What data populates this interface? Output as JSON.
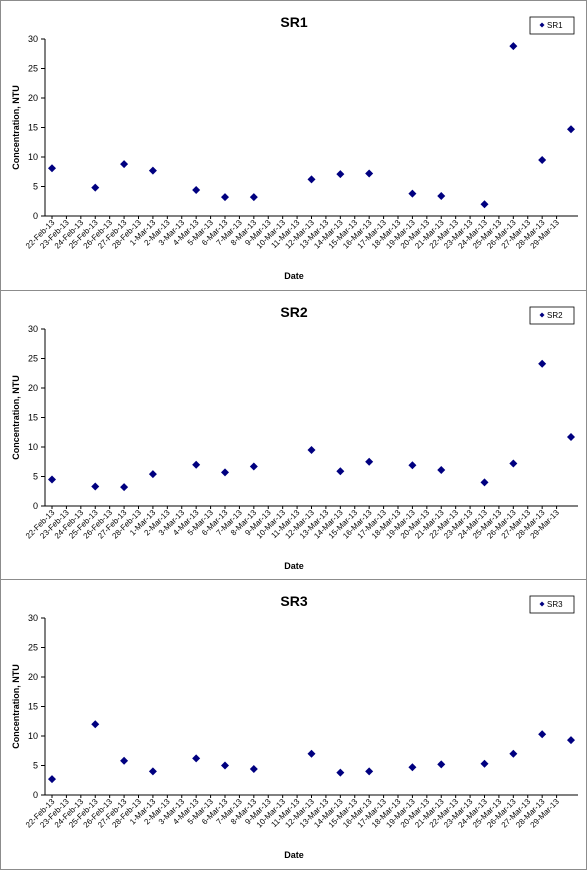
{
  "chart_data": [
    {
      "type": "scatter",
      "title": "SR1",
      "xlabel": "Date",
      "ylabel": "Concentration, NTU",
      "ylim": [
        0,
        30
      ],
      "yticks": [
        0,
        5,
        10,
        15,
        20,
        25,
        30
      ],
      "grid": false,
      "legend_position": "top-right",
      "marker_color": "#000080",
      "categories": [
        "22-Feb-13",
        "23-Feb-13",
        "24-Feb-13",
        "25-Feb-13",
        "26-Feb-13",
        "27-Feb-13",
        "28-Feb-13",
        "1-Mar-13",
        "2-Mar-13",
        "3-Mar-13",
        "4-Mar-13",
        "5-Mar-13",
        "6-Mar-13",
        "7-Mar-13",
        "8-Mar-13",
        "9-Mar-13",
        "10-Mar-13",
        "11-Mar-13",
        "12-Mar-13",
        "13-Mar-13",
        "14-Mar-13",
        "15-Mar-13",
        "16-Mar-13",
        "17-Mar-13",
        "18-Mar-13",
        "19-Mar-13",
        "20-Mar-13",
        "21-Mar-13",
        "22-Mar-13",
        "23-Mar-13",
        "24-Mar-13",
        "25-Mar-13",
        "26-Mar-13",
        "27-Mar-13",
        "28-Mar-13",
        "29-Mar-13"
      ],
      "series": [
        {
          "name": "SR1",
          "points": [
            {
              "x": "22-Feb-13",
              "y": 8.1
            },
            {
              "x": "25-Feb-13",
              "y": 4.8
            },
            {
              "x": "27-Feb-13",
              "y": 8.8
            },
            {
              "x": "1-Mar-13",
              "y": 7.7
            },
            {
              "x": "4-Mar-13",
              "y": 4.4
            },
            {
              "x": "6-Mar-13",
              "y": 3.2
            },
            {
              "x": "8-Mar-13",
              "y": 3.2
            },
            {
              "x": "12-Mar-13",
              "y": 6.2
            },
            {
              "x": "14-Mar-13",
              "y": 7.1
            },
            {
              "x": "16-Mar-13",
              "y": 7.2
            },
            {
              "x": "19-Mar-13",
              "y": 3.8
            },
            {
              "x": "21-Mar-13",
              "y": 3.4
            },
            {
              "x": "24-Mar-13",
              "y": 2.0
            },
            {
              "x": "26-Mar-13",
              "y": 28.8
            },
            {
              "x": "28-Mar-13",
              "y": 9.5
            },
            {
              "x": "30-Mar-13",
              "y": 14.7
            }
          ]
        }
      ]
    },
    {
      "type": "scatter",
      "title": "SR2",
      "xlabel": "Date",
      "ylabel": "Concentration, NTU",
      "ylim": [
        0,
        30
      ],
      "yticks": [
        0,
        5,
        10,
        15,
        20,
        25,
        30
      ],
      "grid": false,
      "legend_position": "top-right",
      "marker_color": "#000080",
      "categories": [
        "22-Feb-13",
        "23-Feb-13",
        "24-Feb-13",
        "25-Feb-13",
        "26-Feb-13",
        "27-Feb-13",
        "28-Feb-13",
        "1-Mar-13",
        "2-Mar-13",
        "3-Mar-13",
        "4-Mar-13",
        "5-Mar-13",
        "6-Mar-13",
        "7-Mar-13",
        "8-Mar-13",
        "9-Mar-13",
        "10-Mar-13",
        "11-Mar-13",
        "12-Mar-13",
        "13-Mar-13",
        "14-Mar-13",
        "15-Mar-13",
        "16-Mar-13",
        "17-Mar-13",
        "18-Mar-13",
        "19-Mar-13",
        "20-Mar-13",
        "21-Mar-13",
        "22-Mar-13",
        "23-Mar-13",
        "24-Mar-13",
        "25-Mar-13",
        "26-Mar-13",
        "27-Mar-13",
        "28-Mar-13",
        "29-Mar-13"
      ],
      "series": [
        {
          "name": "SR2",
          "points": [
            {
              "x": "22-Feb-13",
              "y": 4.5
            },
            {
              "x": "25-Feb-13",
              "y": 3.3
            },
            {
              "x": "27-Feb-13",
              "y": 3.2
            },
            {
              "x": "1-Mar-13",
              "y": 5.4
            },
            {
              "x": "4-Mar-13",
              "y": 7.0
            },
            {
              "x": "6-Mar-13",
              "y": 5.7
            },
            {
              "x": "8-Mar-13",
              "y": 6.7
            },
            {
              "x": "12-Mar-13",
              "y": 9.5
            },
            {
              "x": "14-Mar-13",
              "y": 5.9
            },
            {
              "x": "16-Mar-13",
              "y": 7.5
            },
            {
              "x": "19-Mar-13",
              "y": 6.9
            },
            {
              "x": "21-Mar-13",
              "y": 6.1
            },
            {
              "x": "24-Mar-13",
              "y": 4.0
            },
            {
              "x": "26-Mar-13",
              "y": 7.2
            },
            {
              "x": "28-Mar-13",
              "y": 24.1
            },
            {
              "x": "30-Mar-13",
              "y": 11.7
            }
          ]
        }
      ]
    },
    {
      "type": "scatter",
      "title": "SR3",
      "xlabel": "Date",
      "ylabel": "Concentration, NTU",
      "ylim": [
        0,
        30
      ],
      "yticks": [
        0,
        5,
        10,
        15,
        20,
        25,
        30
      ],
      "grid": false,
      "legend_position": "top-right",
      "marker_color": "#000080",
      "categories": [
        "22-Feb-13",
        "23-Feb-13",
        "24-Feb-13",
        "25-Feb-13",
        "26-Feb-13",
        "27-Feb-13",
        "28-Feb-13",
        "1-Mar-13",
        "2-Mar-13",
        "3-Mar-13",
        "4-Mar-13",
        "5-Mar-13",
        "6-Mar-13",
        "7-Mar-13",
        "8-Mar-13",
        "9-Mar-13",
        "10-Mar-13",
        "11-Mar-13",
        "12-Mar-13",
        "13-Mar-13",
        "14-Mar-13",
        "15-Mar-13",
        "16-Mar-13",
        "17-Mar-13",
        "18-Mar-13",
        "19-Mar-13",
        "20-Mar-13",
        "21-Mar-13",
        "22-Mar-13",
        "23-Mar-13",
        "24-Mar-13",
        "25-Mar-13",
        "26-Mar-13",
        "27-Mar-13",
        "28-Mar-13",
        "29-Mar-13"
      ],
      "series": [
        {
          "name": "SR3",
          "points": [
            {
              "x": "22-Feb-13",
              "y": 2.7
            },
            {
              "x": "25-Feb-13",
              "y": 12.0
            },
            {
              "x": "27-Feb-13",
              "y": 5.8
            },
            {
              "x": "1-Mar-13",
              "y": 4.0
            },
            {
              "x": "4-Mar-13",
              "y": 6.2
            },
            {
              "x": "6-Mar-13",
              "y": 5.0
            },
            {
              "x": "8-Mar-13",
              "y": 4.4
            },
            {
              "x": "12-Mar-13",
              "y": 7.0
            },
            {
              "x": "14-Mar-13",
              "y": 3.8
            },
            {
              "x": "16-Mar-13",
              "y": 4.0
            },
            {
              "x": "19-Mar-13",
              "y": 4.7
            },
            {
              "x": "21-Mar-13",
              "y": 5.2
            },
            {
              "x": "24-Mar-13",
              "y": 5.3
            },
            {
              "x": "26-Mar-13",
              "y": 7.0
            },
            {
              "x": "28-Mar-13",
              "y": 10.3
            },
            {
              "x": "30-Mar-13",
              "y": 9.3
            }
          ]
        }
      ]
    }
  ]
}
